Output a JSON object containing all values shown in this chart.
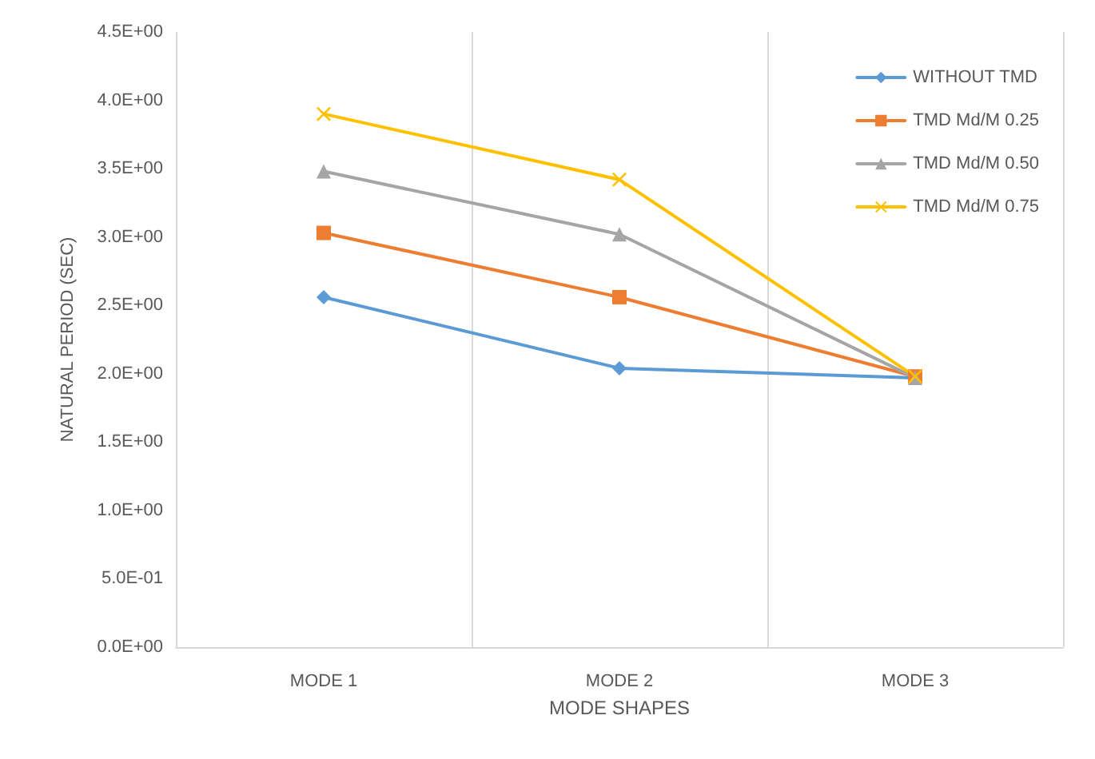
{
  "chart_data": {
    "type": "line",
    "xlabel": "MODE SHAPES",
    "ylabel": "NATURAL PERIOD (SEC)",
    "categories": [
      "MODE 1",
      "MODE 2",
      "MODE 3"
    ],
    "series": [
      {
        "name": "WITHOUT TMD",
        "color": "#5b9bd5",
        "marker": "diamond",
        "values": [
          2.56,
          2.04,
          1.97
        ]
      },
      {
        "name": "TMD Md/M 0.25",
        "color": "#ed7d31",
        "marker": "square",
        "values": [
          3.03,
          2.56,
          1.98
        ]
      },
      {
        "name": "TMD Md/M 0.50",
        "color": "#a5a5a5",
        "marker": "triangle",
        "values": [
          3.48,
          3.02,
          1.97
        ]
      },
      {
        "name": "TMD Md/M 0.75",
        "color": "#ffc000",
        "marker": "cross",
        "values": [
          3.9,
          3.42,
          1.98
        ]
      }
    ],
    "ylim": [
      0,
      4.5
    ],
    "yticks": [
      {
        "value": 0,
        "label": "0.0E+00"
      },
      {
        "value": 0.5,
        "label": "5.0E-01"
      },
      {
        "value": 1,
        "label": "1.0E+00"
      },
      {
        "value": 1.5,
        "label": "1.5E+00"
      },
      {
        "value": 2,
        "label": "2.0E+00"
      },
      {
        "value": 2.5,
        "label": "2.5E+00"
      },
      {
        "value": 3,
        "label": "3.0E+00"
      },
      {
        "value": 3.5,
        "label": "3.5E+00"
      },
      {
        "value": 4,
        "label": "4.0E+00"
      },
      {
        "value": 4.5,
        "label": "4.5E+00"
      }
    ],
    "grid": "x",
    "legend": "top right",
    "line_style": "solid"
  }
}
